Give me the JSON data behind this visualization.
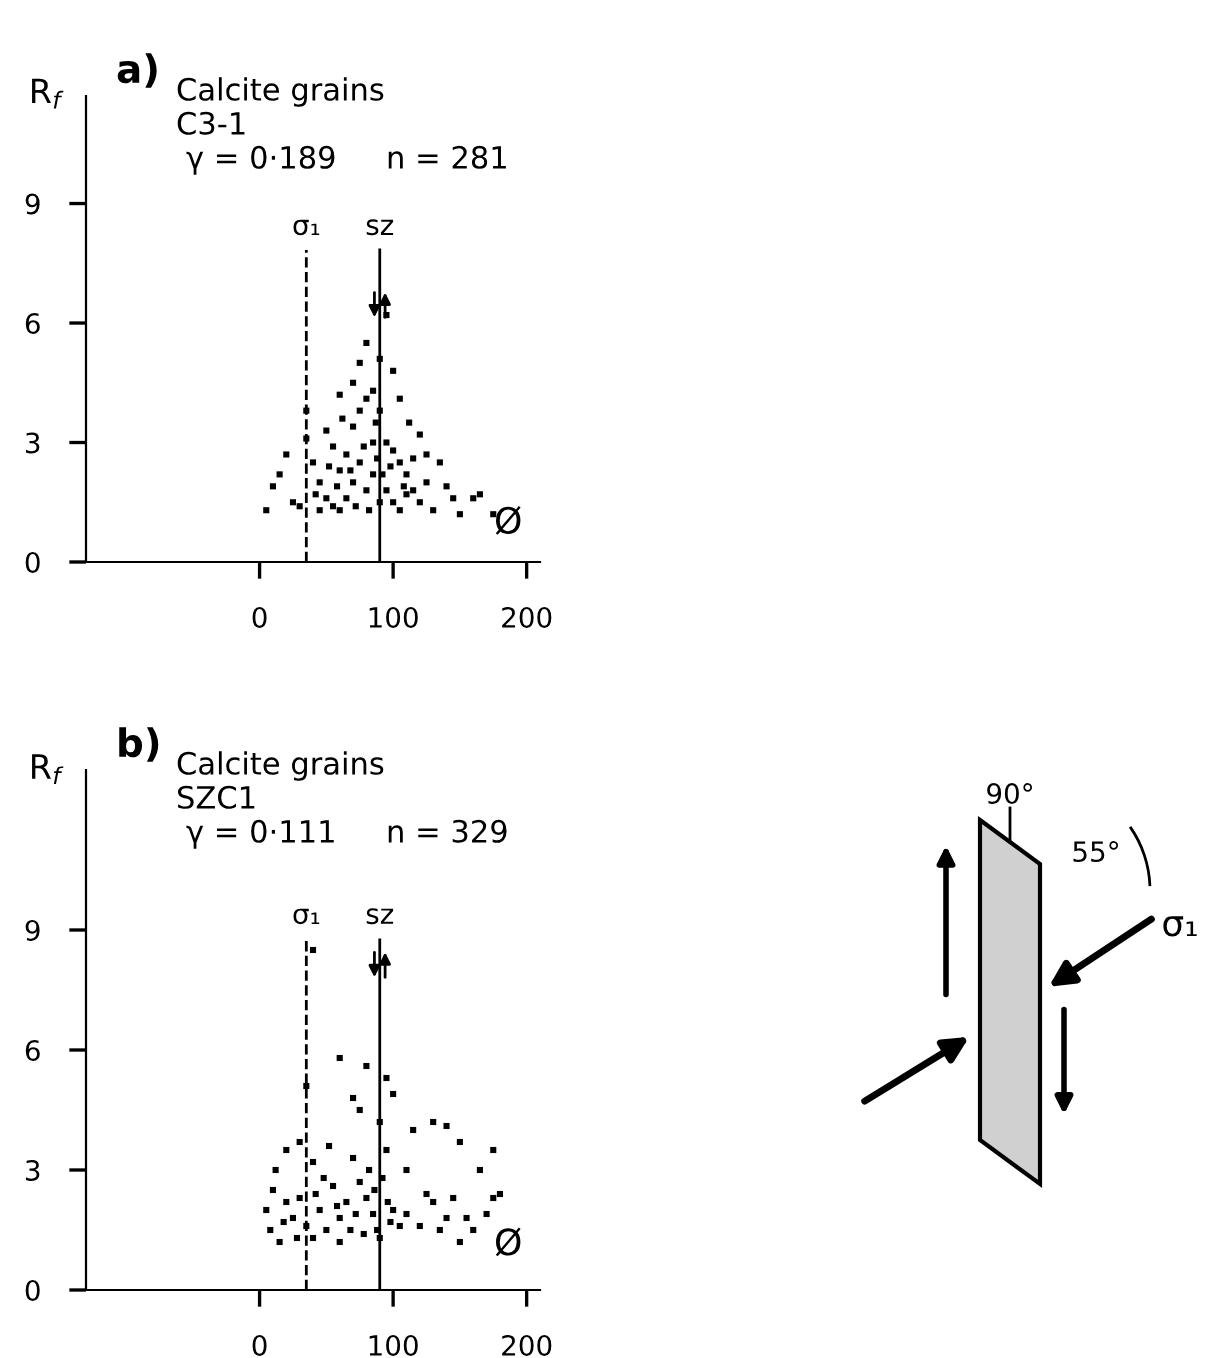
{
  "chart_data": [
    {
      "type": "scatter",
      "ylabel": "R$_{f}$",
      "xlabel": "Ø",
      "xlim": [
        -130,
        210
      ],
      "xticks": [
        0,
        100,
        200
      ],
      "ylim": [
        0,
        11.7
      ],
      "yticks": [
        0,
        3,
        6,
        9
      ],
      "marker": "square",
      "grid": false,
      "legend": false,
      "annotations": [
        "a)",
        "Calcite grains",
        "C3-1",
        "γ = 0·189",
        "n = 281"
      ],
      "ref_lines": [
        {
          "axis": "x",
          "value": 35,
          "label": "σ₁",
          "line_style": "dashed"
        },
        {
          "axis": "x",
          "value": 90,
          "label": "sz",
          "line_style": "solid"
        }
      ],
      "series": [
        {
          "color": "#000000",
          "x": [
            35,
            35,
            20,
            15,
            10,
            25,
            5,
            40,
            45,
            50,
            55,
            60,
            65,
            70,
            75,
            80,
            85,
            90,
            95,
            100,
            105,
            110,
            115,
            120,
            125,
            130,
            140,
            145,
            150,
            160,
            165,
            175,
            95,
            90,
            80,
            75,
            70,
            60,
            100,
            105,
            85,
            80,
            75,
            70,
            65,
            60,
            90,
            95,
            100,
            105,
            110,
            115,
            120,
            45,
            55,
            50,
            85,
            88,
            78,
            72,
            82,
            92,
            98,
            68,
            58,
            52,
            42,
            30,
            108,
            112,
            135,
            125,
            62,
            87
          ],
          "values": [
            3.8,
            3.1,
            2.7,
            2.2,
            1.9,
            1.5,
            1.3,
            2.5,
            2.0,
            1.6,
            1.4,
            2.3,
            2.7,
            3.4,
            3.8,
            4.1,
            4.3,
            3.8,
            3.0,
            2.8,
            2.5,
            2.2,
            1.8,
            1.5,
            2.0,
            1.3,
            1.9,
            1.6,
            1.2,
            1.6,
            1.7,
            1.2,
            6.2,
            5.1,
            5.5,
            5.0,
            4.5,
            4.2,
            4.8,
            4.1,
            2.2,
            1.8,
            2.5,
            2.0,
            1.6,
            1.3,
            1.5,
            1.8,
            1.5,
            1.3,
            1.7,
            2.6,
            3.2,
            1.3,
            2.9,
            3.3,
            3.0,
            2.6,
            2.9,
            1.4,
            1.3,
            2.2,
            2.4,
            2.3,
            1.9,
            2.4,
            1.7,
            1.4,
            1.9,
            3.5,
            2.5,
            2.7,
            3.6,
            3.5
          ]
        }
      ]
    },
    {
      "type": "scatter",
      "ylabel": "R$_{f}$",
      "xlabel": "Ø",
      "xlim": [
        -130,
        210
      ],
      "xticks": [
        0,
        100,
        200
      ],
      "ylim": [
        0,
        13
      ],
      "yticks": [
        0,
        3,
        6,
        9
      ],
      "marker": "square",
      "grid": false,
      "legend": false,
      "annotations": [
        "b)",
        "Calcite grains",
        "SZC1",
        "γ = 0·111",
        "n = 329"
      ],
      "ref_lines": [
        {
          "axis": "x",
          "value": 35,
          "label": "σ₁",
          "line_style": "dashed"
        },
        {
          "axis": "x",
          "value": 90,
          "label": "sz",
          "line_style": "solid"
        }
      ],
      "series": [
        {
          "color": "#000000",
          "x": [
            40,
            35,
            60,
            80,
            95,
            100,
            70,
            75,
            90,
            130,
            140,
            150,
            175,
            165,
            175,
            170,
            160,
            150,
            140,
            130,
            120,
            110,
            115,
            20,
            30,
            40,
            10,
            5,
            8,
            15,
            25,
            30,
            45,
            50,
            55,
            60,
            65,
            70,
            75,
            80,
            85,
            88,
            92,
            95,
            100,
            105,
            110,
            60,
            40,
            20,
            35,
            48,
            52,
            68,
            78,
            82,
            90,
            98,
            125,
            135,
            145,
            18,
            28,
            42,
            58,
            72,
            86,
            96,
            155,
            12,
            180
          ],
          "values": [
            8.5,
            5.1,
            5.8,
            5.6,
            5.3,
            4.9,
            4.8,
            4.5,
            4.2,
            4.2,
            4.1,
            3.7,
            3.5,
            3.0,
            2.3,
            1.9,
            1.5,
            1.2,
            1.8,
            2.2,
            1.6,
            3.0,
            4.0,
            3.5,
            3.7,
            3.2,
            2.5,
            2.0,
            1.5,
            1.2,
            1.8,
            2.3,
            2.0,
            1.5,
            2.6,
            1.8,
            2.2,
            3.3,
            2.7,
            2.3,
            1.9,
            1.5,
            2.8,
            3.5,
            2.0,
            1.6,
            1.9,
            1.2,
            1.3,
            2.2,
            1.6,
            2.8,
            3.6,
            1.5,
            1.4,
            3.0,
            1.3,
            1.7,
            2.4,
            1.5,
            2.3,
            1.7,
            1.3,
            2.4,
            2.1,
            1.9,
            2.5,
            2.2,
            1.8,
            3.0,
            2.4
          ]
        }
      ]
    },
    {
      "type": "other",
      "annotations": [
        "90°",
        "55°",
        "σ₁"
      ]
    }
  ]
}
